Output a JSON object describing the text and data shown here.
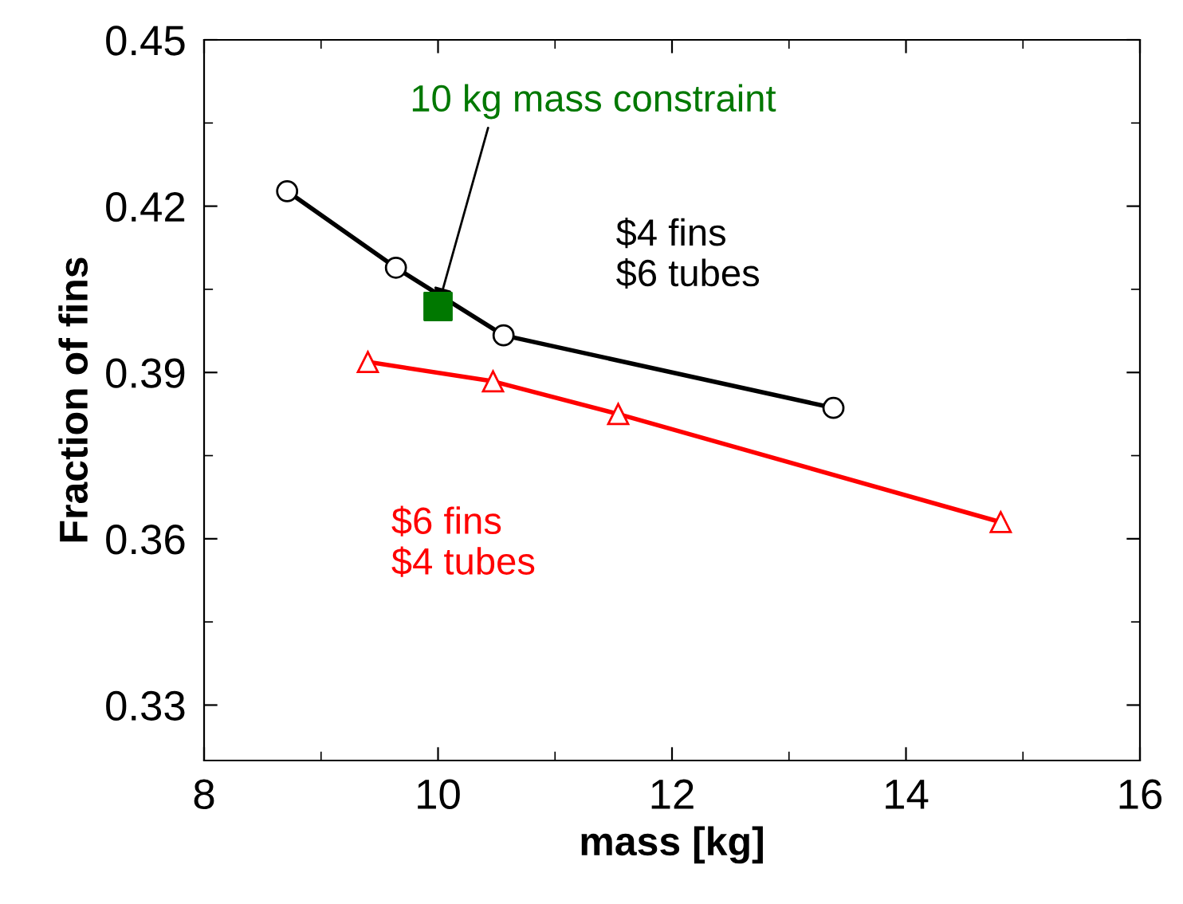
{
  "chart_data": {
    "type": "line",
    "xlabel": "mass [kg]",
    "ylabel": "Fraction of fins",
    "xlim": [
      8,
      16
    ],
    "xticks": [
      8,
      10,
      12,
      14,
      16
    ],
    "ylim": [
      0.32,
      0.45
    ],
    "yticks": [
      0.33,
      0.36,
      0.39,
      0.42,
      0.45
    ],
    "grid": false,
    "legend": false,
    "line_style": "solid",
    "series": [
      {
        "name": "$4 fins\n$6 tubes",
        "color": "#000000",
        "marker": "circle",
        "x": [
          8.71,
          9.64,
          10.56,
          13.38
        ],
        "values": [
          0.4227,
          0.4089,
          0.3967,
          0.3836
        ]
      },
      {
        "name": "$6 fins\n$4 tubes",
        "color": "#ff0000",
        "marker": "triangle",
        "x": [
          9.4,
          10.47,
          11.54,
          14.81
        ],
        "values": [
          0.3919,
          0.3884,
          0.3825,
          0.363
        ]
      },
      {
        "type": "scatter",
        "color": "#007800",
        "marker": "square",
        "x": [
          10.0
        ],
        "values": [
          0.4019
        ]
      }
    ],
    "annotations": [
      {
        "text": "10 kg mass constraint",
        "x": 10.0,
        "y": 0.4019
      }
    ]
  }
}
